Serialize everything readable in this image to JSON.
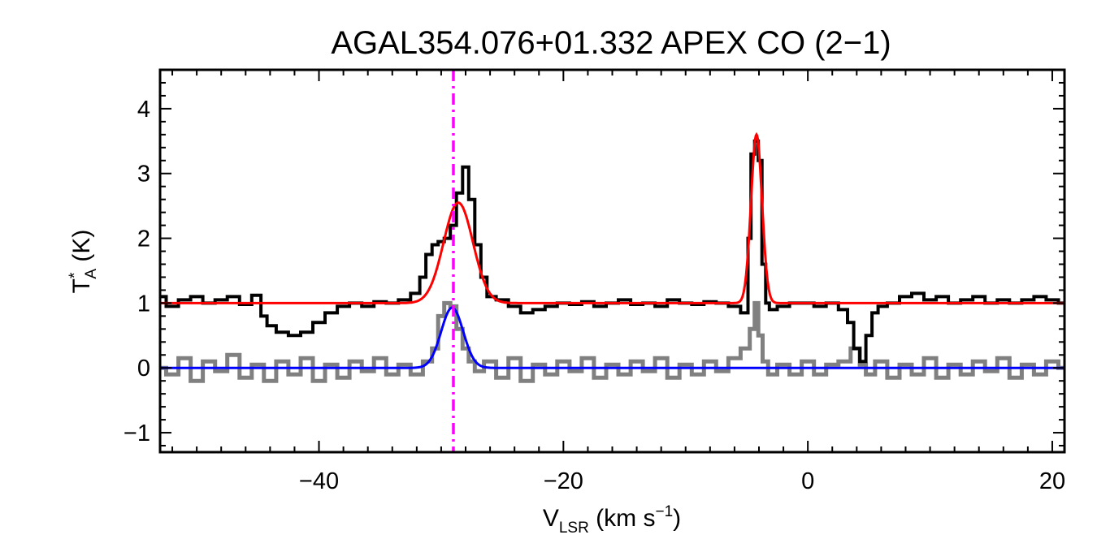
{
  "chart_data": {
    "type": "line",
    "title": "AGAL354.076+01.332  APEX CO (2−1)",
    "xlabel": {
      "main": "V",
      "sub": "LSR",
      "unit_open": " (km s",
      "unit_sup": "−1",
      "unit_close": ")"
    },
    "ylabel": {
      "main": "T",
      "sup": "*",
      "sub": "A",
      "unit": " (K)"
    },
    "xlim": [
      -53,
      21
    ],
    "ylim": [
      -1.3,
      4.6
    ],
    "xticks": [
      -40,
      -20,
      0,
      20
    ],
    "xtick_labels": [
      "−40",
      "−20",
      "0",
      "20"
    ],
    "yticks": [
      -1,
      0,
      1,
      2,
      3,
      4
    ],
    "ytick_labels": [
      "−1",
      "0",
      "1",
      "2",
      "3",
      "4"
    ],
    "grid": false,
    "reference_line": {
      "x": -29,
      "style": "dash-dot",
      "color": "#ff00ff"
    },
    "series": [
      {
        "role": "observed spectrum (offset +1)",
        "color": "#000000",
        "style": "step",
        "points": [
          [
            -53,
            1.1
          ],
          [
            -52,
            0.95
          ],
          [
            -51,
            1.05
          ],
          [
            -50,
            1.1
          ],
          [
            -49,
            1.0
          ],
          [
            -48,
            1.05
          ],
          [
            -47,
            1.1
          ],
          [
            -46,
            0.98
          ],
          [
            -45,
            1.12
          ],
          [
            -44.5,
            0.8
          ],
          [
            -44,
            0.65
          ],
          [
            -43,
            0.55
          ],
          [
            -42,
            0.5
          ],
          [
            -41,
            0.55
          ],
          [
            -40,
            0.7
          ],
          [
            -39,
            0.85
          ],
          [
            -38,
            0.95
          ],
          [
            -37,
            1.0
          ],
          [
            -36,
            0.95
          ],
          [
            -35,
            1.02
          ],
          [
            -34,
            1.0
          ],
          [
            -33,
            1.05
          ],
          [
            -32,
            1.15
          ],
          [
            -31.5,
            1.4
          ],
          [
            -31,
            1.75
          ],
          [
            -30.5,
            1.9
          ],
          [
            -30,
            1.95
          ],
          [
            -29.5,
            2.0
          ],
          [
            -29,
            2.2
          ],
          [
            -28.5,
            2.7
          ],
          [
            -28,
            3.1
          ],
          [
            -27.5,
            2.6
          ],
          [
            -27,
            1.9
          ],
          [
            -26.5,
            1.4
          ],
          [
            -26,
            1.1
          ],
          [
            -25,
            1.05
          ],
          [
            -24,
            0.95
          ],
          [
            -23,
            0.85
          ],
          [
            -22,
            0.9
          ],
          [
            -21,
            0.95
          ],
          [
            -20,
            1.0
          ],
          [
            -19,
            0.98
          ],
          [
            -18,
            1.02
          ],
          [
            -17,
            0.95
          ],
          [
            -16,
            1.0
          ],
          [
            -15,
            1.05
          ],
          [
            -14,
            0.98
          ],
          [
            -13,
            1.0
          ],
          [
            -12,
            0.95
          ],
          [
            -11,
            1.05
          ],
          [
            -10,
            1.0
          ],
          [
            -9,
            0.98
          ],
          [
            -8,
            1.02
          ],
          [
            -7,
            1.0
          ],
          [
            -6,
            0.95
          ],
          [
            -5,
            0.85
          ],
          [
            -4.8,
            2.0
          ],
          [
            -4.5,
            3.3
          ],
          [
            -4.2,
            3.5
          ],
          [
            -3.9,
            3.2
          ],
          [
            -3.6,
            1.6
          ],
          [
            -3.3,
            1.0
          ],
          [
            -3,
            0.9
          ],
          [
            -2,
            0.95
          ],
          [
            -1,
            1.0
          ],
          [
            0,
            1.0
          ],
          [
            1,
            0.95
          ],
          [
            2,
            1.0
          ],
          [
            3,
            0.9
          ],
          [
            3.5,
            0.7
          ],
          [
            4,
            0.3
          ],
          [
            4.5,
            0.1
          ],
          [
            5,
            0.5
          ],
          [
            5.5,
            0.85
          ],
          [
            6,
            0.95
          ],
          [
            7,
            1.0
          ],
          [
            8,
            1.1
          ],
          [
            9,
            1.15
          ],
          [
            10,
            1.05
          ],
          [
            11,
            1.1
          ],
          [
            12,
            1.0
          ],
          [
            13,
            1.05
          ],
          [
            14,
            1.1
          ],
          [
            15,
            1.0
          ],
          [
            16,
            1.05
          ],
          [
            17,
            1.0
          ],
          [
            18,
            1.05
          ],
          [
            19,
            1.1
          ],
          [
            20,
            1.05
          ],
          [
            21,
            1.0
          ]
        ]
      },
      {
        "role": "fit to observed spectrum",
        "color": "#ff0000",
        "style": "line",
        "baseline": 1.0,
        "gaussians": [
          {
            "amplitude": 1.55,
            "center": -28.6,
            "sigma": 1.2
          },
          {
            "amplitude": 2.6,
            "center": -4.2,
            "sigma": 0.45
          }
        ]
      },
      {
        "role": "second spectrum",
        "color": "#808080",
        "style": "step",
        "points": [
          [
            -53,
            0.0
          ],
          [
            -52,
            -0.1
          ],
          [
            -51,
            0.15
          ],
          [
            -50,
            -0.2
          ],
          [
            -49,
            0.1
          ],
          [
            -48,
            -0.05
          ],
          [
            -47,
            0.2
          ],
          [
            -46,
            -0.15
          ],
          [
            -45,
            0.05
          ],
          [
            -44,
            -0.2
          ],
          [
            -43,
            0.1
          ],
          [
            -42,
            -0.1
          ],
          [
            -41,
            0.15
          ],
          [
            -40,
            -0.2
          ],
          [
            -39,
            0.05
          ],
          [
            -38,
            -0.15
          ],
          [
            -37,
            0.1
          ],
          [
            -36,
            -0.05
          ],
          [
            -35,
            0.15
          ],
          [
            -34,
            -0.1
          ],
          [
            -33,
            0.05
          ],
          [
            -32,
            -0.1
          ],
          [
            -31,
            0.1
          ],
          [
            -30.5,
            0.3
          ],
          [
            -30,
            0.8
          ],
          [
            -29.5,
            1.0
          ],
          [
            -29,
            0.95
          ],
          [
            -28.5,
            0.6
          ],
          [
            -28,
            0.3
          ],
          [
            -27.5,
            0.1
          ],
          [
            -27,
            -0.05
          ],
          [
            -26,
            0.1
          ],
          [
            -25,
            -0.15
          ],
          [
            -24,
            0.15
          ],
          [
            -23,
            -0.2
          ],
          [
            -22,
            0.05
          ],
          [
            -21,
            -0.1
          ],
          [
            -20,
            0.1
          ],
          [
            -19,
            -0.05
          ],
          [
            -18,
            0.15
          ],
          [
            -17,
            -0.15
          ],
          [
            -16,
            0.05
          ],
          [
            -15,
            -0.1
          ],
          [
            -14,
            0.1
          ],
          [
            -13,
            -0.05
          ],
          [
            -12,
            0.15
          ],
          [
            -11,
            -0.15
          ],
          [
            -10,
            0.05
          ],
          [
            -9,
            -0.1
          ],
          [
            -8,
            0.1
          ],
          [
            -7,
            -0.05
          ],
          [
            -6,
            0.15
          ],
          [
            -5,
            0.3
          ],
          [
            -4.5,
            0.6
          ],
          [
            -4.2,
            1.0
          ],
          [
            -3.9,
            0.5
          ],
          [
            -3.5,
            0.1
          ],
          [
            -3,
            -0.1
          ],
          [
            -2,
            0.05
          ],
          [
            -1,
            -0.1
          ],
          [
            0,
            0.1
          ],
          [
            1,
            -0.1
          ],
          [
            2,
            0.05
          ],
          [
            3,
            0.1
          ],
          [
            4,
            0.3
          ],
          [
            4.5,
            0.05
          ],
          [
            5,
            -0.1
          ],
          [
            6,
            0.1
          ],
          [
            7,
            -0.15
          ],
          [
            8,
            0.05
          ],
          [
            9,
            -0.1
          ],
          [
            10,
            0.15
          ],
          [
            11,
            -0.15
          ],
          [
            12,
            0.05
          ],
          [
            13,
            -0.1
          ],
          [
            14,
            0.1
          ],
          [
            15,
            -0.05
          ],
          [
            16,
            0.15
          ],
          [
            17,
            -0.15
          ],
          [
            18,
            0.05
          ],
          [
            19,
            -0.1
          ],
          [
            20,
            0.1
          ],
          [
            21,
            0.0
          ]
        ]
      },
      {
        "role": "fit to second spectrum",
        "color": "#0000ff",
        "style": "line",
        "baseline": 0.0,
        "gaussians": [
          {
            "amplitude": 0.93,
            "center": -29.1,
            "sigma": 0.9
          }
        ]
      }
    ]
  }
}
